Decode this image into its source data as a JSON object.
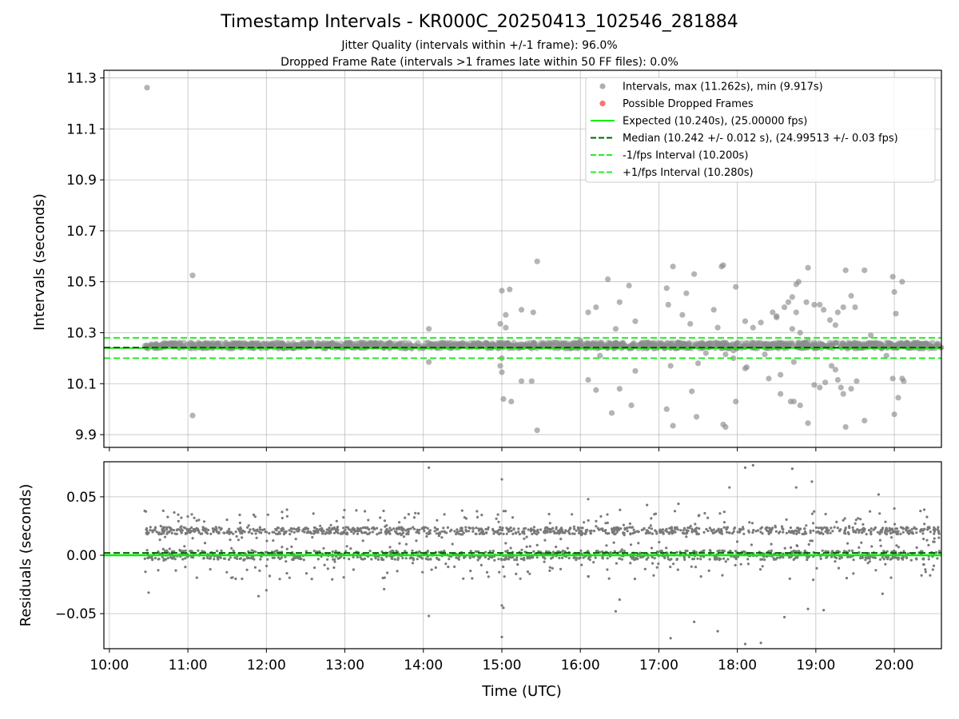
{
  "chart_data": [
    {
      "type": "scatter",
      "title": "Timestamp Intervals - KR000C_20250413_102546_281884",
      "subtitle_lines": [
        "Jitter Quality (intervals within +/-1 frame): 96.0%",
        "Dropped Frame Rate (intervals >1 frames late within 50 FF files): 0.0%"
      ],
      "ylabel": "Intervals (seconds)",
      "ylim": [
        9.85,
        11.33
      ],
      "yticks": [
        9.9,
        10.1,
        10.3,
        10.5,
        10.7,
        10.9,
        11.1,
        11.3
      ],
      "ytick_labels": [
        "9.9",
        "10.1",
        "10.3",
        "10.5",
        "10.7",
        "10.9",
        "11.1",
        "11.3"
      ],
      "xlim": [
        9.93,
        20.6
      ],
      "xticks": [
        10,
        11,
        12,
        13,
        14,
        15,
        16,
        17,
        18,
        19,
        20
      ],
      "grid": true,
      "legend_position": "top-right",
      "legend": [
        "Intervals, max (11.262s), min (9.917s)",
        "Possible Dropped Frames",
        "Expected (10.240s), (25.00000 fps)",
        "Median (10.242 +/- 0.012 s), (24.99513 +/- 0.03 fps)",
        "-1/fps Interval (10.200s)",
        "+1/fps Interval (10.280s)"
      ],
      "reference_lines": {
        "expected": 10.24,
        "median": 10.242,
        "minus_one_fps": 10.2,
        "plus_one_fps": 10.28
      },
      "dense_band": {
        "x_start": 10.45,
        "x_end": 20.6,
        "low": 10.238,
        "high": 10.262
      },
      "series": [
        {
          "name": "Intervals, max (11.262s), min (9.917s)",
          "points": [
            [
              10.48,
              11.262
            ],
            [
              11.06,
              10.525
            ],
            [
              11.06,
              9.975
            ],
            [
              14.07,
              10.315
            ],
            [
              14.07,
              10.185
            ],
            [
              14.98,
              10.335
            ],
            [
              15.0,
              10.465
            ],
            [
              15.0,
              10.2
            ],
            [
              15.0,
              10.145
            ],
            [
              15.02,
              10.04
            ],
            [
              15.05,
              10.37
            ],
            [
              15.05,
              10.32
            ],
            [
              15.1,
              10.47
            ],
            [
              15.12,
              10.03
            ],
            [
              15.25,
              10.39
            ],
            [
              15.25,
              10.11
            ],
            [
              15.38,
              10.11
            ],
            [
              15.4,
              10.38
            ],
            [
              15.45,
              10.58
            ],
            [
              15.45,
              9.917
            ],
            [
              16.1,
              10.38
            ],
            [
              16.1,
              10.115
            ],
            [
              16.2,
              10.4
            ],
            [
              16.2,
              10.075
            ],
            [
              16.35,
              10.51
            ],
            [
              16.4,
              9.985
            ],
            [
              16.45,
              10.315
            ],
            [
              16.5,
              10.42
            ],
            [
              16.5,
              10.08
            ],
            [
              16.62,
              10.485
            ],
            [
              16.65,
              10.015
            ],
            [
              16.7,
              10.345
            ],
            [
              16.7,
              10.15
            ],
            [
              17.1,
              10.475
            ],
            [
              17.1,
              10.0
            ],
            [
              17.12,
              10.41
            ],
            [
              17.15,
              10.17
            ],
            [
              17.18,
              10.56
            ],
            [
              17.18,
              9.935
            ],
            [
              17.3,
              10.37
            ],
            [
              17.35,
              10.455
            ],
            [
              17.4,
              10.335
            ],
            [
              17.42,
              10.07
            ],
            [
              17.45,
              10.53
            ],
            [
              17.48,
              9.97
            ],
            [
              17.5,
              10.18
            ],
            [
              17.7,
              10.39
            ],
            [
              17.75,
              10.32
            ],
            [
              17.8,
              10.56
            ],
            [
              17.82,
              10.565
            ],
            [
              17.82,
              9.94
            ],
            [
              17.85,
              10.215
            ],
            [
              17.85,
              9.93
            ],
            [
              17.95,
              10.23
            ],
            [
              17.95,
              10.2
            ],
            [
              17.98,
              10.48
            ],
            [
              17.98,
              10.03
            ],
            [
              18.1,
              10.345
            ],
            [
              18.1,
              10.16
            ],
            [
              18.12,
              10.165
            ],
            [
              18.2,
              10.32
            ],
            [
              18.25,
              10.26
            ],
            [
              18.3,
              10.34
            ],
            [
              18.35,
              10.215
            ],
            [
              18.4,
              10.12
            ],
            [
              18.45,
              10.38
            ],
            [
              18.5,
              10.36
            ],
            [
              18.5,
              10.365
            ],
            [
              18.55,
              10.135
            ],
            [
              18.55,
              10.06
            ],
            [
              18.6,
              10.4
            ],
            [
              18.65,
              10.42
            ],
            [
              18.68,
              10.03
            ],
            [
              18.7,
              10.44
            ],
            [
              18.7,
              10.315
            ],
            [
              18.72,
              10.185
            ],
            [
              18.72,
              10.03
            ],
            [
              18.75,
              10.49
            ],
            [
              18.75,
              10.38
            ],
            [
              18.78,
              10.5
            ],
            [
              18.8,
              10.3
            ],
            [
              18.8,
              10.015
            ],
            [
              18.88,
              10.42
            ],
            [
              18.9,
              10.555
            ],
            [
              18.9,
              9.945
            ],
            [
              18.98,
              10.41
            ],
            [
              18.98,
              10.095
            ],
            [
              19.05,
              10.41
            ],
            [
              19.05,
              10.085
            ],
            [
              19.1,
              10.39
            ],
            [
              19.12,
              10.105
            ],
            [
              19.18,
              10.35
            ],
            [
              19.2,
              10.17
            ],
            [
              19.25,
              10.33
            ],
            [
              19.25,
              10.155
            ],
            [
              19.28,
              10.38
            ],
            [
              19.28,
              10.115
            ],
            [
              19.32,
              10.085
            ],
            [
              19.35,
              10.4
            ],
            [
              19.35,
              10.06
            ],
            [
              19.38,
              10.545
            ],
            [
              19.38,
              9.93
            ],
            [
              19.45,
              10.445
            ],
            [
              19.45,
              10.08
            ],
            [
              19.5,
              10.4
            ],
            [
              19.52,
              10.11
            ],
            [
              19.62,
              10.545
            ],
            [
              19.62,
              9.955
            ],
            [
              19.7,
              10.29
            ],
            [
              19.75,
              10.255
            ],
            [
              19.98,
              10.52
            ],
            [
              19.98,
              10.12
            ],
            [
              20.0,
              10.46
            ],
            [
              20.0,
              9.98
            ],
            [
              20.02,
              10.375
            ],
            [
              20.05,
              10.045
            ],
            [
              20.1,
              10.5
            ],
            [
              20.1,
              10.12
            ],
            [
              20.12,
              10.11
            ],
            [
              14.98,
              10.17
            ],
            [
              16.0,
              10.27
            ],
            [
              16.25,
              10.21
            ],
            [
              17.6,
              10.22
            ],
            [
              18.9,
              10.27
            ],
            [
              19.9,
              10.21
            ]
          ]
        },
        {
          "name": "Possible Dropped Frames",
          "points": []
        }
      ],
      "colors": {
        "intervals": "#8c8c8c",
        "dropped": "#ff4d4d",
        "expected": "#00ee00",
        "median": "#006400",
        "fps_band": "#22ee22"
      }
    },
    {
      "type": "scatter",
      "ylabel": "Residuals (seconds)",
      "xlabel": "Time (UTC)",
      "ylim": [
        -0.08,
        0.08
      ],
      "yticks": [
        -0.05,
        0.0,
        0.05
      ],
      "ytick_labels": [
        "−0.05",
        "0.00",
        "0.05"
      ],
      "xlim": [
        9.93,
        20.6
      ],
      "xticks": [
        10,
        11,
        12,
        13,
        14,
        15,
        16,
        17,
        18,
        19,
        20
      ],
      "xtick_labels": [
        "10:00",
        "11:00",
        "12:00",
        "13:00",
        "14:00",
        "15:00",
        "16:00",
        "17:00",
        "18:00",
        "19:00",
        "20:00"
      ],
      "grid": true,
      "reference_lines": {
        "zero": 0.0,
        "median_offset": 0.002
      },
      "bands": [
        {
          "center": 0.021,
          "spread": 0.003
        },
        {
          "center": 0.0,
          "spread": 0.004
        }
      ],
      "outliers": [
        [
          14.07,
          0.075
        ],
        [
          14.07,
          -0.052
        ],
        [
          15.0,
          0.065
        ],
        [
          15.0,
          -0.07
        ],
        [
          15.02,
          -0.045
        ],
        [
          15.0,
          -0.043
        ],
        [
          16.1,
          0.048
        ],
        [
          16.45,
          -0.048
        ],
        [
          16.85,
          0.043
        ],
        [
          17.15,
          -0.071
        ],
        [
          17.25,
          0.044
        ],
        [
          17.45,
          -0.057
        ],
        [
          17.75,
          -0.065
        ],
        [
          17.9,
          0.058
        ],
        [
          18.1,
          0.075
        ],
        [
          18.1,
          -0.076
        ],
        [
          18.2,
          0.077
        ],
        [
          18.3,
          -0.075
        ],
        [
          18.6,
          -0.053
        ],
        [
          18.7,
          0.074
        ],
        [
          18.75,
          0.058
        ],
        [
          18.9,
          -0.046
        ],
        [
          18.95,
          0.063
        ],
        [
          19.1,
          -0.047
        ],
        [
          19.8,
          0.052
        ],
        [
          20.0,
          0.04
        ],
        [
          19.85,
          -0.033
        ],
        [
          12.2,
          0.037
        ],
        [
          11.05,
          0.035
        ],
        [
          10.45,
          0.038
        ],
        [
          10.5,
          -0.032
        ],
        [
          11.9,
          -0.035
        ],
        [
          12.0,
          -0.03
        ],
        [
          13.5,
          -0.029
        ],
        [
          16.5,
          -0.038
        ]
      ],
      "colors": {
        "points": "#7a7a7a",
        "zero_line": "#00ee00",
        "median": "#006400"
      }
    }
  ]
}
